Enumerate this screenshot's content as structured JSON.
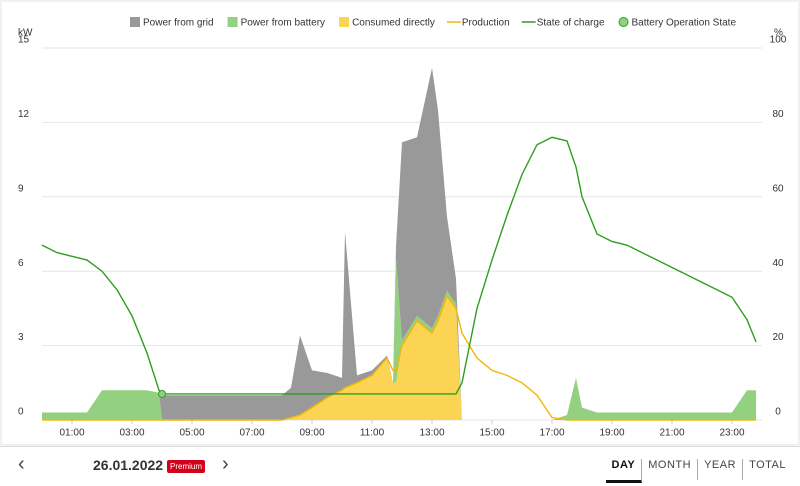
{
  "chart_data": {
    "type": "stacked_area",
    "y_unit": "kW",
    "y2_unit": "%",
    "x": [
      0,
      0.5,
      1,
      1.5,
      2,
      2.5,
      3,
      3.5,
      3.9,
      4,
      4.5,
      5,
      5.5,
      6,
      6.5,
      7,
      7.5,
      8,
      8.3,
      8.6,
      9,
      9.5,
      10,
      10.1,
      10.5,
      11,
      11.5,
      11.7,
      11.8,
      12,
      12.5,
      13,
      13.2,
      13.5,
      13.8,
      14,
      14.5,
      15,
      15.5,
      16,
      16.5,
      17,
      17.5,
      17.8,
      18,
      18.5,
      19,
      19.5,
      20,
      20.5,
      21,
      21.5,
      22,
      22.5,
      23,
      23.5,
      23.8
    ],
    "xlim": [
      0,
      24
    ],
    "xticks": [
      {
        "value": 1,
        "label": "01:00"
      },
      {
        "value": 3,
        "label": "03:00"
      },
      {
        "value": 5,
        "label": "05:00"
      },
      {
        "value": 7,
        "label": "07:00"
      },
      {
        "value": 9,
        "label": "09:00"
      },
      {
        "value": 11,
        "label": "11:00"
      },
      {
        "value": 13,
        "label": "13:00"
      },
      {
        "value": 15,
        "label": "15:00"
      },
      {
        "value": 17,
        "label": "17:00"
      },
      {
        "value": 19,
        "label": "19:00"
      },
      {
        "value": 21,
        "label": "21:00"
      },
      {
        "value": 23,
        "label": "23:00"
      }
    ],
    "ylim": [
      0,
      15
    ],
    "yticks": [
      0,
      3,
      6,
      9,
      12,
      15
    ],
    "y2lim": [
      0,
      100
    ],
    "y2ticks": [
      0,
      20,
      40,
      60,
      80,
      100
    ],
    "grid": true,
    "series": [
      {
        "name": "Power from grid",
        "kind": "area",
        "color": "#999999",
        "values": [
          0,
          0,
          0,
          0,
          0,
          0,
          0,
          0,
          0,
          1.0,
          1.0,
          1.0,
          1.0,
          1.0,
          1.0,
          1.0,
          1.0,
          1.0,
          1.2,
          3.2,
          1.5,
          1.0,
          0.5,
          6.3,
          0.3,
          0.2,
          0.1,
          0,
          0.5,
          8.0,
          7.2,
          10.5,
          8.3,
          3.0,
          1.0,
          0,
          0,
          0,
          0,
          0,
          0,
          0,
          0,
          0,
          0,
          0,
          0,
          0,
          0,
          0,
          0,
          0,
          0,
          0,
          0,
          0,
          0
        ]
      },
      {
        "name": "Power from battery",
        "kind": "area",
        "color": "#93d181",
        "values": [
          0.3,
          0.3,
          0.3,
          0.3,
          1.2,
          1.2,
          1.2,
          1.2,
          1.1,
          0,
          0,
          0,
          0,
          0,
          0,
          0,
          0,
          0,
          0,
          0,
          0,
          0,
          0,
          0,
          0,
          0,
          0,
          0,
          5,
          0.2,
          0.2,
          0.2,
          0.2,
          0.2,
          0.2,
          0,
          0,
          0,
          0,
          0,
          0,
          0,
          0.2,
          1.7,
          0.5,
          0.3,
          0.3,
          0.3,
          0.3,
          0.3,
          0.3,
          0.3,
          0.3,
          0.3,
          0.3,
          1.2,
          1.2
        ]
      },
      {
        "name": "Consumed directly",
        "kind": "area",
        "color": "#fcd453",
        "values": [
          0,
          0,
          0,
          0,
          0,
          0,
          0,
          0,
          0,
          0,
          0,
          0,
          0,
          0,
          0,
          0,
          0,
          0,
          0.1,
          0.2,
          0.5,
          0.9,
          1.2,
          1.3,
          1.5,
          1.8,
          2.5,
          1.5,
          1.5,
          3.0,
          4.0,
          3.5,
          4.0,
          5.0,
          4.5,
          0,
          0,
          0,
          0,
          0,
          0,
          0,
          0,
          0,
          0,
          0,
          0,
          0,
          0,
          0,
          0,
          0,
          0,
          0,
          0,
          0,
          0
        ]
      },
      {
        "name": "Production",
        "kind": "line",
        "color": "#f2b705",
        "values": [
          0,
          0,
          0,
          0,
          0,
          0,
          0,
          0,
          0,
          0,
          0,
          0,
          0,
          0,
          0,
          0,
          0,
          0,
          0.1,
          0.2,
          0.5,
          0.9,
          1.2,
          1.3,
          1.5,
          1.8,
          2.5,
          2.0,
          2.0,
          3.0,
          4.0,
          3.5,
          4.0,
          5.0,
          4.5,
          3.5,
          2.5,
          2.0,
          1.8,
          1.5,
          1.0,
          0.1,
          0,
          0,
          0,
          0,
          0,
          0,
          0,
          0,
          0,
          0,
          0,
          0,
          0,
          0,
          0
        ]
      },
      {
        "name": "State of charge",
        "kind": "line",
        "axis": "y2",
        "color": "#2e9e1f",
        "values": [
          47,
          45,
          44,
          43,
          40,
          35,
          28,
          18,
          8,
          7,
          7,
          7,
          7,
          7,
          7,
          7,
          7,
          7,
          7,
          7,
          7,
          7,
          7,
          7,
          7,
          7,
          7,
          7,
          7,
          7,
          7,
          7,
          7,
          7,
          7,
          10,
          30,
          43,
          55,
          66,
          74,
          76,
          75,
          68,
          60,
          50,
          48,
          47,
          45,
          43,
          41,
          39,
          37,
          35,
          33,
          27,
          21
        ]
      },
      {
        "name": "Battery Operation State",
        "kind": "point",
        "axis": "y2",
        "color": "#8fd17f",
        "values": [
          null,
          null,
          null,
          null,
          null,
          null,
          null,
          null,
          null,
          7,
          null,
          null,
          null,
          null,
          null,
          null,
          null,
          null,
          null,
          null,
          null,
          null,
          null,
          null,
          null,
          null,
          null,
          null,
          null,
          null,
          null,
          null,
          null,
          null,
          null,
          null,
          null,
          null,
          null,
          null,
          null,
          null,
          null,
          null,
          null,
          null,
          null,
          null,
          null,
          null,
          null,
          null,
          null,
          null,
          null,
          null,
          null
        ]
      }
    ]
  },
  "footer": {
    "date": "26.01.2022",
    "badge": "Premium",
    "tabs": [
      "DAY",
      "MONTH",
      "YEAR",
      "TOTAL"
    ],
    "active_tab": 0
  }
}
